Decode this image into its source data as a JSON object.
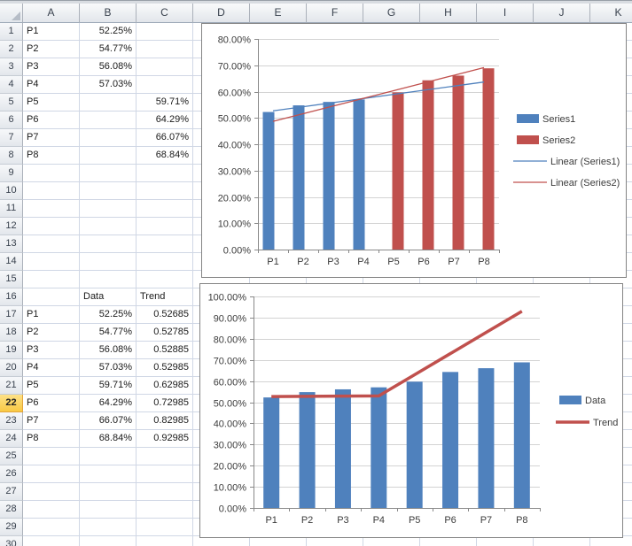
{
  "grid": {
    "corner_label": "select-all",
    "col_headers": [
      "A",
      "B",
      "C",
      "D",
      "E",
      "F",
      "G",
      "H",
      "I",
      "J",
      "K"
    ],
    "visible_rows": 30,
    "selected_row": 22,
    "cells": [
      {
        "r": 1,
        "c": "A",
        "v": "P1",
        "a": "l"
      },
      {
        "r": 1,
        "c": "B",
        "v": "52.25%",
        "a": "r"
      },
      {
        "r": 2,
        "c": "A",
        "v": "P2",
        "a": "l"
      },
      {
        "r": 2,
        "c": "B",
        "v": "54.77%",
        "a": "r"
      },
      {
        "r": 3,
        "c": "A",
        "v": "P3",
        "a": "l"
      },
      {
        "r": 3,
        "c": "B",
        "v": "56.08%",
        "a": "r"
      },
      {
        "r": 4,
        "c": "A",
        "v": "P4",
        "a": "l"
      },
      {
        "r": 4,
        "c": "B",
        "v": "57.03%",
        "a": "r"
      },
      {
        "r": 5,
        "c": "A",
        "v": "P5",
        "a": "l"
      },
      {
        "r": 5,
        "c": "C",
        "v": "59.71%",
        "a": "r"
      },
      {
        "r": 6,
        "c": "A",
        "v": "P6",
        "a": "l"
      },
      {
        "r": 6,
        "c": "C",
        "v": "64.29%",
        "a": "r"
      },
      {
        "r": 7,
        "c": "A",
        "v": "P7",
        "a": "l"
      },
      {
        "r": 7,
        "c": "C",
        "v": "66.07%",
        "a": "r"
      },
      {
        "r": 8,
        "c": "A",
        "v": "P8",
        "a": "l"
      },
      {
        "r": 8,
        "c": "C",
        "v": "68.84%",
        "a": "r"
      },
      {
        "r": 16,
        "c": "B",
        "v": "Data",
        "a": "l"
      },
      {
        "r": 16,
        "c": "C",
        "v": "Trend",
        "a": "l"
      },
      {
        "r": 17,
        "c": "A",
        "v": "P1",
        "a": "l"
      },
      {
        "r": 17,
        "c": "B",
        "v": "52.25%",
        "a": "r"
      },
      {
        "r": 17,
        "c": "C",
        "v": "0.52685",
        "a": "r"
      },
      {
        "r": 18,
        "c": "A",
        "v": "P2",
        "a": "l"
      },
      {
        "r": 18,
        "c": "B",
        "v": "54.77%",
        "a": "r"
      },
      {
        "r": 18,
        "c": "C",
        "v": "0.52785",
        "a": "r"
      },
      {
        "r": 19,
        "c": "A",
        "v": "P3",
        "a": "l"
      },
      {
        "r": 19,
        "c": "B",
        "v": "56.08%",
        "a": "r"
      },
      {
        "r": 19,
        "c": "C",
        "v": "0.52885",
        "a": "r"
      },
      {
        "r": 20,
        "c": "A",
        "v": "P4",
        "a": "l"
      },
      {
        "r": 20,
        "c": "B",
        "v": "57.03%",
        "a": "r"
      },
      {
        "r": 20,
        "c": "C",
        "v": "0.52985",
        "a": "r"
      },
      {
        "r": 21,
        "c": "A",
        "v": "P5",
        "a": "l"
      },
      {
        "r": 21,
        "c": "B",
        "v": "59.71%",
        "a": "r"
      },
      {
        "r": 21,
        "c": "C",
        "v": "0.62985",
        "a": "r"
      },
      {
        "r": 22,
        "c": "A",
        "v": "P6",
        "a": "l"
      },
      {
        "r": 22,
        "c": "B",
        "v": "64.29%",
        "a": "r"
      },
      {
        "r": 22,
        "c": "C",
        "v": "0.72985",
        "a": "r"
      },
      {
        "r": 23,
        "c": "A",
        "v": "P7",
        "a": "l"
      },
      {
        "r": 23,
        "c": "B",
        "v": "66.07%",
        "a": "r"
      },
      {
        "r": 23,
        "c": "C",
        "v": "0.82985",
        "a": "r"
      },
      {
        "r": 24,
        "c": "A",
        "v": "P8",
        "a": "l"
      },
      {
        "r": 24,
        "c": "B",
        "v": "68.84%",
        "a": "r"
      },
      {
        "r": 24,
        "c": "C",
        "v": "0.92985",
        "a": "r"
      }
    ]
  },
  "colors": {
    "series_blue": "#4F81BD",
    "series_red": "#C0504D",
    "chart_gridline": "#D3D3D3",
    "chart_axis": "#898989",
    "sheet_gridline": "#D0D7E5",
    "selected_row_header": "#F9C944"
  },
  "chart_data": [
    {
      "type": "bar",
      "title": "",
      "categories": [
        "P1",
        "P2",
        "P3",
        "P4",
        "P5",
        "P6",
        "P7",
        "P8"
      ],
      "series": [
        {
          "name": "Series1",
          "kind": "bar",
          "color": "#4F81BD",
          "values": [
            52.25,
            54.77,
            56.08,
            57.03,
            null,
            null,
            null,
            null
          ]
        },
        {
          "name": "Series2",
          "kind": "bar",
          "color": "#C0504D",
          "values": [
            null,
            null,
            null,
            null,
            59.71,
            64.29,
            66.07,
            68.84
          ]
        },
        {
          "name": "Linear (Series1)",
          "kind": "line",
          "color": "#4F81BD",
          "stroke_width": 1.3,
          "values": [
            52.69,
            54.25,
            55.82,
            57.38,
            58.95,
            60.51,
            62.08,
            63.64
          ]
        },
        {
          "name": "Linear (Series2)",
          "kind": "line",
          "color": "#C0504D",
          "stroke_width": 1.3,
          "values": [
            48.68,
            51.6,
            54.52,
            57.43,
            60.35,
            63.27,
            66.19,
            69.1
          ]
        }
      ],
      "ylim": [
        0,
        80
      ],
      "ytick_step": 10,
      "ytick_format": "percent2",
      "grid": true,
      "legend_position": "right",
      "xlabel": "",
      "ylabel": ""
    },
    {
      "type": "bar",
      "title": "",
      "categories": [
        "P1",
        "P2",
        "P3",
        "P4",
        "P5",
        "P6",
        "P7",
        "P8"
      ],
      "series": [
        {
          "name": "Data",
          "kind": "bar",
          "color": "#4F81BD",
          "values": [
            52.25,
            54.77,
            56.08,
            57.03,
            59.71,
            64.29,
            66.07,
            68.84
          ]
        },
        {
          "name": "Trend",
          "kind": "line",
          "color": "#C0504D",
          "stroke_width": 3.5,
          "values": [
            52.685,
            52.785,
            52.885,
            52.985,
            62.985,
            72.985,
            82.985,
            92.985
          ]
        }
      ],
      "ylim": [
        0,
        100
      ],
      "ytick_step": 10,
      "ytick_format": "percent2",
      "grid": true,
      "legend_position": "right",
      "xlabel": "",
      "ylabel": ""
    }
  ]
}
